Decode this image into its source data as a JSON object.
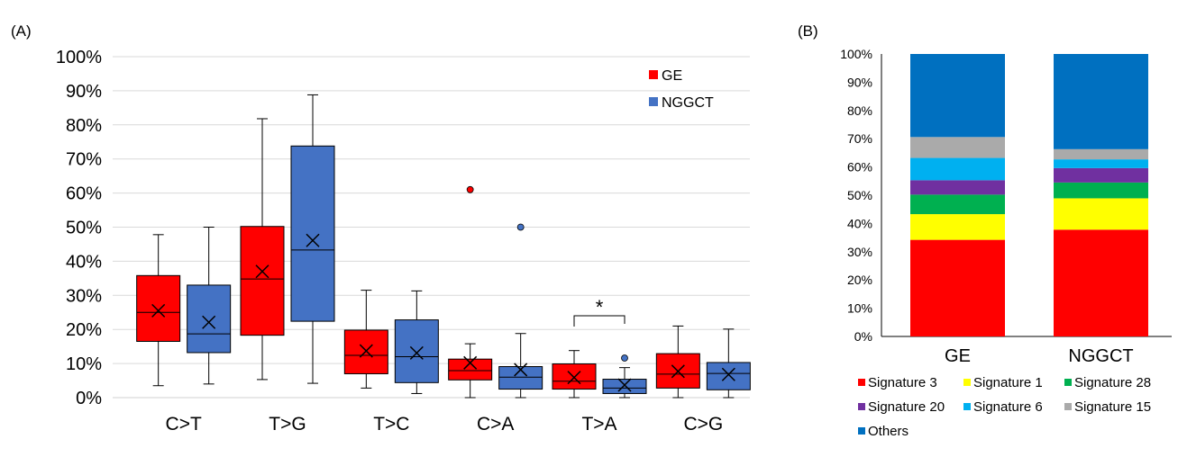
{
  "panel_a_label": "(A)",
  "panel_b_label": "(B)",
  "chart_data": [
    {
      "type": "box",
      "categories": [
        "C>T",
        "T>G",
        "T>C",
        "C>A",
        "T>A",
        "C>G"
      ],
      "y_ticks": [
        "0%",
        "10%",
        "20%",
        "30%",
        "40%",
        "50%",
        "60%",
        "70%",
        "80%",
        "90%",
        "100%"
      ],
      "ylim": [
        0,
        100
      ],
      "grid": true,
      "legend_position": "top-right",
      "significance_marker": "*",
      "significance_category": "T>A",
      "series": [
        {
          "name": "GE",
          "color": "#ff0000",
          "boxes": [
            {
              "min": 3.5,
              "q1": 16.5,
              "median": 25,
              "q3": 35.8,
              "max": 47.8,
              "mean": 25.5,
              "outliers": []
            },
            {
              "min": 5.3,
              "q1": 18.3,
              "median": 34.8,
              "q3": 50.2,
              "max": 81.8,
              "mean": 37,
              "outliers": []
            },
            {
              "min": 2.8,
              "q1": 7,
              "median": 12.4,
              "q3": 19.8,
              "max": 31.5,
              "mean": 13.7,
              "outliers": []
            },
            {
              "min": 0,
              "q1": 5.2,
              "median": 7.9,
              "q3": 11.3,
              "max": 15.8,
              "mean": 10.2,
              "outliers": [
                61
              ]
            },
            {
              "min": 0,
              "q1": 2.5,
              "median": 4.8,
              "q3": 9.9,
              "max": 13.8,
              "mean": 5.9,
              "outliers": []
            },
            {
              "min": 0,
              "q1": 2.8,
              "median": 6.9,
              "q3": 12.9,
              "max": 21,
              "mean": 7.7,
              "outliers": []
            }
          ]
        },
        {
          "name": "NGGCT",
          "color": "#4472c4",
          "boxes": [
            {
              "min": 4,
              "q1": 13.2,
              "median": 18.7,
              "q3": 33,
              "max": 50,
              "mean": 22.1,
              "outliers": []
            },
            {
              "min": 4.2,
              "q1": 22.4,
              "median": 43.3,
              "q3": 73.8,
              "max": 88.8,
              "mean": 46.1,
              "outliers": []
            },
            {
              "min": 1.2,
              "q1": 4.4,
              "median": 12,
              "q3": 22.8,
              "max": 31.3,
              "mean": 13.1,
              "outliers": []
            },
            {
              "min": 0,
              "q1": 2.5,
              "median": 6,
              "q3": 9.1,
              "max": 18.8,
              "mean": 8.2,
              "outliers": [
                50
              ]
            },
            {
              "min": 0,
              "q1": 1.2,
              "median": 2.8,
              "q3": 5.4,
              "max": 8.8,
              "mean": 3.7,
              "outliers": [
                11.6
              ]
            },
            {
              "min": 0,
              "q1": 2.3,
              "median": 7.1,
              "q3": 10.3,
              "max": 20.1,
              "mean": 6.8,
              "outliers": []
            }
          ]
        }
      ]
    },
    {
      "type": "bar",
      "stacked": true,
      "categories": [
        "GE",
        "NGGCT"
      ],
      "y_ticks": [
        "0%",
        "10%",
        "20%",
        "30%",
        "40%",
        "50%",
        "60%",
        "70%",
        "80%",
        "90%",
        "100%"
      ],
      "ylim": [
        0,
        100
      ],
      "legend_position": "bottom",
      "series": [
        {
          "name": "Signature 3",
          "color": "#ff0000",
          "values": [
            34.2,
            37.8
          ]
        },
        {
          "name": "Signature 1",
          "color": "#ffff00",
          "values": [
            9.1,
            11.1
          ]
        },
        {
          "name": "Signature 28",
          "color": "#00b050",
          "values": [
            6.9,
            5.6
          ]
        },
        {
          "name": "Signature 20",
          "color": "#7030a0",
          "values": [
            5.1,
            5.1
          ]
        },
        {
          "name": "Signature 6",
          "color": "#00b0f0",
          "values": [
            7.9,
            3.1
          ]
        },
        {
          "name": "Signature 15",
          "color": "#aaaaaa",
          "values": [
            7.4,
            3.6
          ]
        },
        {
          "name": "Others",
          "color": "#0070c0",
          "values": [
            29.4,
            33.7
          ]
        }
      ]
    }
  ]
}
